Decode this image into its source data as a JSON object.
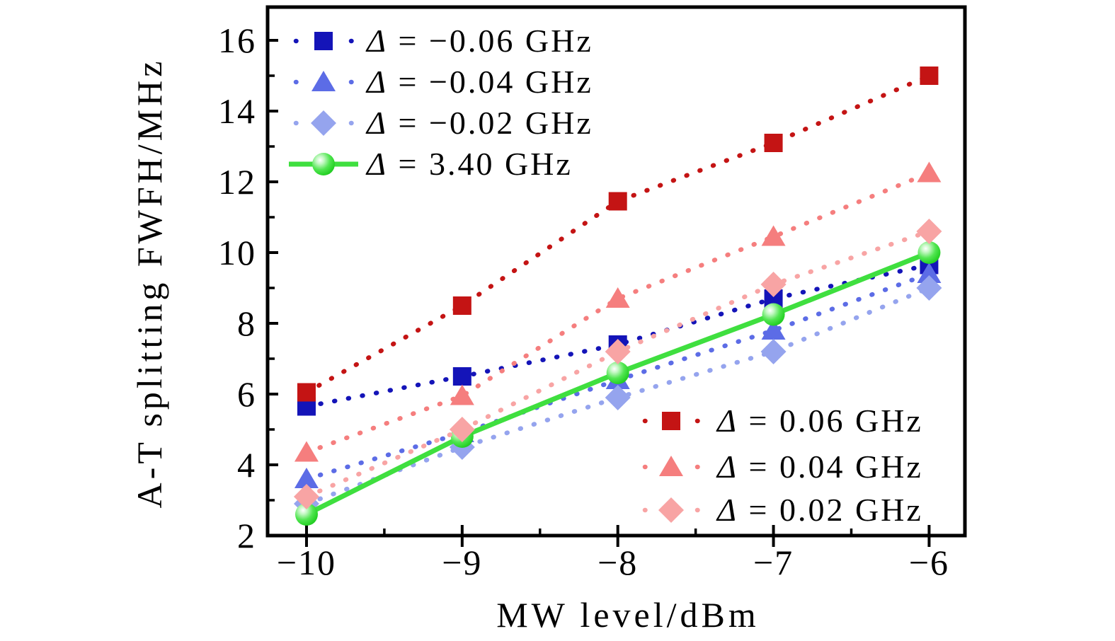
{
  "chart_data": {
    "type": "scatter",
    "title": "",
    "xlabel": "MW level/dBm",
    "ylabel": "A-T splitting FWFH/MHz",
    "x": [
      -10,
      -9,
      -8,
      -7,
      -6
    ],
    "xlim": [
      -10.25,
      -5.77
    ],
    "ylim": [
      2,
      16.94
    ],
    "grid": false,
    "frame_color": "#000000",
    "x_major_ticks": [
      -10,
      -9,
      -8,
      -7,
      -6
    ],
    "x_minor_ticks": [
      -9.5,
      -8.5,
      -7.5,
      -6.5
    ],
    "x_tick_labels": [
      "−10",
      "−9",
      "−8",
      "−7",
      "−6"
    ],
    "y_major_ticks": [
      2,
      4,
      6,
      8,
      10,
      12,
      14,
      16
    ],
    "y_minor_ticks": [
      3,
      5,
      7,
      9,
      11,
      13,
      15
    ],
    "series": [
      {
        "name": "Δ = −0.06 GHz",
        "marker": "square",
        "color": "#1414b8",
        "line_style": "dotted",
        "legend": "top-left",
        "values": [
          5.65,
          6.5,
          7.4,
          8.7,
          9.65
        ]
      },
      {
        "name": "Δ = −0.04 GHz",
        "marker": "triangle",
        "color": "#5c6ce6",
        "line_style": "dotted",
        "legend": "top-left",
        "values": [
          3.6,
          4.9,
          6.4,
          7.8,
          9.4
        ]
      },
      {
        "name": "Δ = −0.02 GHz",
        "marker": "diamond",
        "color": "#95a4ee",
        "line_style": "dotted",
        "legend": "top-left",
        "values": [
          2.9,
          4.5,
          5.9,
          7.2,
          9.0
        ]
      },
      {
        "name": "Δ = 3.40 GHz",
        "marker": "sphere",
        "color": "#2ed82e",
        "line_color": "#3fdf3f",
        "line_style": "solid",
        "legend": "top-left",
        "values": [
          2.6,
          4.8,
          6.6,
          8.25,
          10.0
        ]
      },
      {
        "name": "Δ = 0.06 GHz",
        "marker": "square",
        "color": "#c41414",
        "line_style": "dotted",
        "legend": "bottom-right",
        "values": [
          6.05,
          8.5,
          11.45,
          13.1,
          15.0
        ]
      },
      {
        "name": "Δ = 0.04 GHz",
        "marker": "triangle",
        "color": "#f57e7e",
        "line_style": "dotted",
        "legend": "bottom-right",
        "values": [
          4.35,
          5.95,
          8.7,
          10.45,
          12.25
        ]
      },
      {
        "name": "Δ = 0.02 GHz",
        "marker": "diamond",
        "color": "#f8a4a4",
        "line_style": "dotted",
        "legend": "bottom-right",
        "values": [
          3.1,
          5.0,
          7.2,
          9.1,
          10.6
        ]
      }
    ],
    "legend_positions": [
      "top-left",
      "bottom-right"
    ]
  }
}
